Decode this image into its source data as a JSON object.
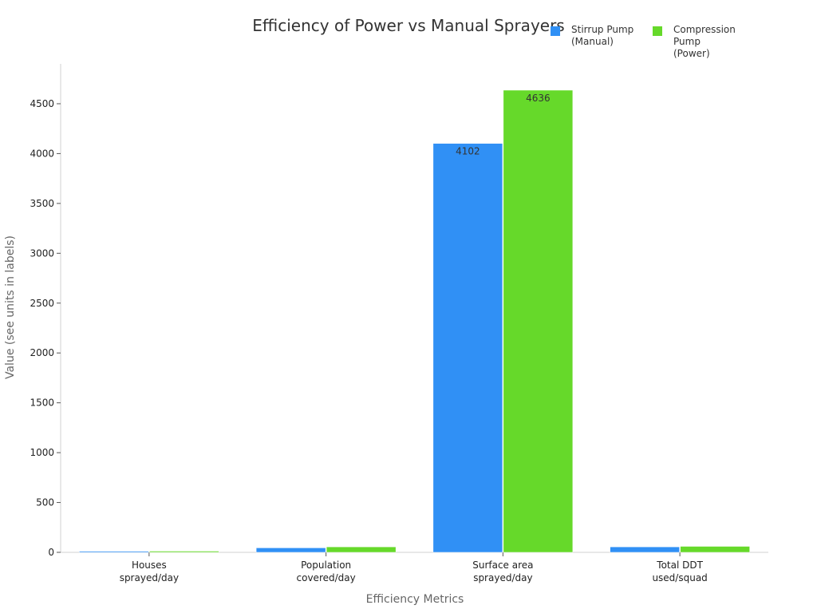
{
  "chart_data": {
    "type": "bar",
    "title": "Efficiency of Power vs Manual Sprayers",
    "xlabel": "Efficiency Metrics",
    "ylabel": "Value (see units in labels)",
    "categories": [
      "Houses\nsprayed/day",
      "Population\ncovered/day",
      "Surface area\nsprayed/day",
      "Total DDT\nused/squad"
    ],
    "series": [
      {
        "name": "Stirrup Pump\n(Manual)",
        "color": "#3090f5",
        "values": [
          11,
          45,
          4102,
          55
        ]
      },
      {
        "name": "Compression Pump\n(Power)",
        "color": "#66d92a",
        "values": [
          12,
          55,
          4636,
          60
        ]
      }
    ],
    "bar_labels_shown": [
      [
        "",
        "",
        "4102",
        ""
      ],
      [
        "",
        "",
        "4636",
        ""
      ]
    ],
    "ylim": [
      0,
      4900
    ],
    "yticks": [
      0,
      500,
      1000,
      1500,
      2000,
      2500,
      3000,
      3500,
      4000,
      4500
    ],
    "legend_position": "top-right",
    "grid": false
  }
}
